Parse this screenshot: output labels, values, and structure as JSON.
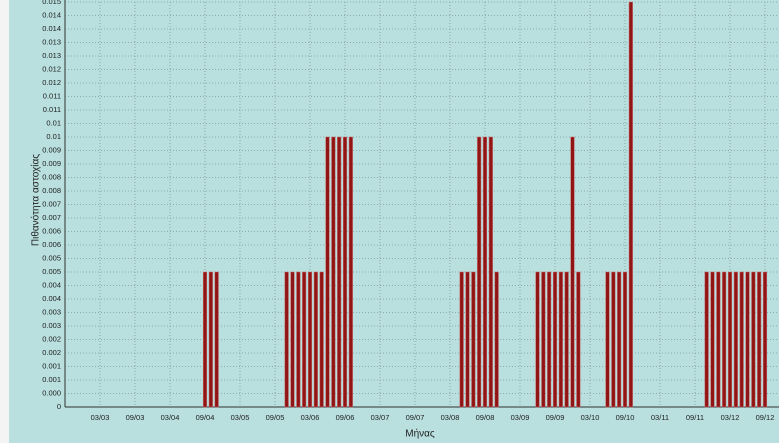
{
  "chart_data": {
    "type": "bar",
    "x_label": "Μήνας",
    "y_label": "Πιθανότητα αστοχίας",
    "color": "#921515",
    "grid": true,
    "categories": [
      null,
      null,
      null,
      null,
      null,
      null,
      "03/03",
      null,
      null,
      null,
      null,
      null,
      "09/03",
      null,
      null,
      null,
      null,
      null,
      "03/04",
      null,
      null,
      null,
      null,
      null,
      "09/04",
      null,
      null,
      null,
      null,
      null,
      "03/05",
      null,
      null,
      null,
      null,
      null,
      "09/05",
      null,
      null,
      null,
      null,
      null,
      "03/06",
      null,
      null,
      null,
      null,
      null,
      "09/06",
      null,
      null,
      null,
      null,
      null,
      "03/07",
      null,
      null,
      null,
      null,
      null,
      "09/07",
      null,
      null,
      null,
      null,
      null,
      "03/08",
      null,
      null,
      null,
      null,
      null,
      "09/08",
      null,
      null,
      null,
      null,
      null,
      "03/09",
      null,
      null,
      null,
      null,
      null,
      "09/09",
      null,
      null,
      null,
      null,
      null,
      "03/10",
      null,
      null,
      null,
      null,
      null,
      "09/10",
      null,
      null,
      null,
      null,
      null,
      "03/11",
      null,
      null,
      null,
      null,
      null,
      "09/11",
      null,
      null,
      null,
      null,
      null,
      "03/12",
      null,
      null,
      null,
      null,
      null,
      "09/12",
      null,
      null
    ],
    "values": [
      0,
      0,
      0,
      0,
      0,
      0,
      0,
      0,
      0,
      0,
      0,
      0,
      0,
      0,
      0,
      0,
      0,
      0,
      0,
      0,
      0,
      0,
      0,
      0,
      0.005,
      0.005,
      0.005,
      0,
      0,
      0,
      0,
      0,
      0,
      0,
      0,
      0,
      0,
      0,
      0.005,
      0.005,
      0.005,
      0.005,
      0.005,
      0.005,
      0.005,
      0.01,
      0.01,
      0.01,
      0.01,
      0.01,
      0,
      0,
      0,
      0,
      0,
      0,
      0,
      0,
      0,
      0,
      0,
      0,
      0,
      0,
      0,
      0,
      0,
      0,
      0.005,
      0.005,
      0.005,
      0.01,
      0.01,
      0.01,
      0.005,
      0,
      0,
      0,
      0,
      0,
      0,
      0.005,
      0.005,
      0.005,
      0.005,
      0.005,
      0.005,
      0.01,
      0.005,
      0,
      0,
      0,
      0,
      0.005,
      0.005,
      0.005,
      0.005,
      0.015,
      0,
      0,
      0,
      0,
      0,
      0,
      0,
      0,
      0,
      0,
      0,
      0,
      0.005,
      0.005,
      0.005,
      0.005,
      0.005,
      0.005,
      0.005,
      0.005,
      0.005,
      0.005,
      0.005,
      0,
      0
    ],
    "ylim": [
      0,
      0.015
    ],
    "yticks": [
      0,
      {
        "value": 0.0005,
        "label": "0.000"
      },
      0.001,
      {
        "value": 0.0015,
        "label": "0.001"
      },
      0.002,
      {
        "value": 0.0025,
        "label": "0.002"
      },
      0.003,
      {
        "value": 0.0035,
        "label": "0.003"
      },
      0.004,
      {
        "value": 0.0045,
        "label": "0.004"
      },
      0.005,
      {
        "value": 0.0055,
        "label": "0.005"
      },
      0.006,
      {
        "value": 0.0065,
        "label": "0.006"
      },
      0.007,
      {
        "value": 0.0075,
        "label": "0.007"
      },
      0.008,
      {
        "value": 0.0085,
        "label": "0.008"
      },
      0.009,
      {
        "value": 0.0095,
        "label": "0.009"
      },
      0.01,
      {
        "value": 0.0105,
        "label": "0.01"
      },
      0.011,
      {
        "value": 0.0115,
        "label": "0.011"
      },
      0.012,
      {
        "value": 0.0125,
        "label": "0.012"
      },
      0.013,
      {
        "value": 0.0135,
        "label": "0.013"
      },
      0.014,
      {
        "value": 0.0145,
        "label": "0.014"
      },
      0.015
    ]
  }
}
